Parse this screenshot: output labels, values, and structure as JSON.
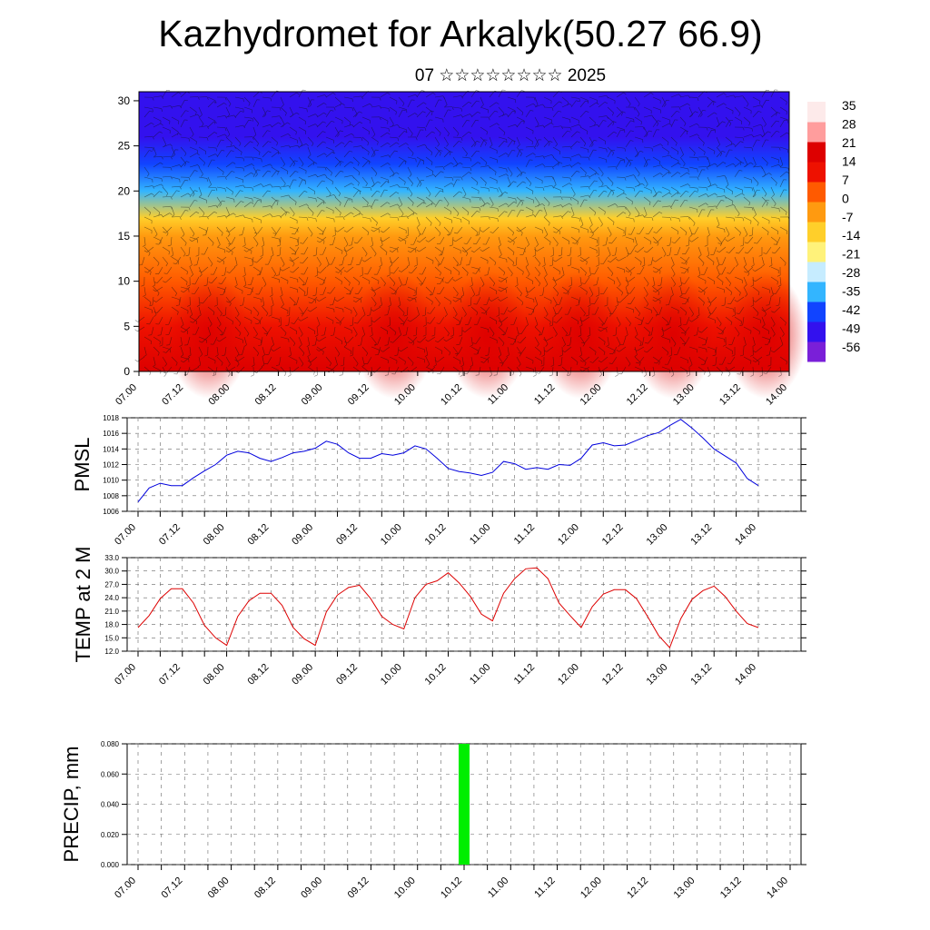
{
  "header": {
    "title": "Kazhydromet for Arkalyk(50.27 66.9)",
    "subtitle": "07 ☆☆☆☆☆☆☆☆ 2025"
  },
  "x_ticks": [
    "07.00",
    "07.12",
    "08.00",
    "08.12",
    "09.00",
    "09.12",
    "10.00",
    "10.12",
    "11.00",
    "11.12",
    "12.00",
    "12.12",
    "13.00",
    "13.12",
    "14.00"
  ],
  "chart_data": [
    {
      "type": "heatmap",
      "title": "",
      "xlabel": "",
      "ylabel": "",
      "x_range": [
        "07.00",
        "14.00"
      ],
      "y_ticks": [
        0,
        5,
        10,
        15,
        20,
        25,
        30
      ],
      "ylim": [
        0,
        31
      ],
      "colorbar": {
        "labels": [
          35,
          28,
          21,
          14,
          7,
          0,
          -7,
          -14,
          -21,
          -28,
          -35,
          -42,
          -49,
          -56
        ],
        "range": [
          -63,
          42
        ],
        "colors": [
          "#7a1fd8",
          "#3311ee",
          "#1144ff",
          "#33b5ff",
          "#c6ecff",
          "#fff27a",
          "#ffcf2a",
          "#ff9a10",
          "#ff5a00",
          "#ee1100",
          "#dd0000",
          "#ff9d9d",
          "#fdeaea"
        ]
      },
      "field_description_values": {
        "layers_temperature": [
          [
            0,
            24
          ],
          [
            5,
            20
          ],
          [
            10,
            11
          ],
          [
            15,
            -2
          ],
          [
            17,
            -12
          ],
          [
            20,
            -36
          ],
          [
            23,
            -48
          ],
          [
            26,
            -54
          ],
          [
            30,
            -58
          ]
        ]
      },
      "overlay": "wind barbs",
      "grid": false
    },
    {
      "type": "line",
      "ylabel": "PMSL",
      "ylim": [
        1006,
        1018
      ],
      "y_ticks": [
        1006,
        1008,
        1010,
        1012,
        1014,
        1016,
        1018
      ],
      "color": "#0000dd",
      "x": [
        "07.00",
        "07.03",
        "07.06",
        "07.09",
        "07.12",
        "07.15",
        "07.18",
        "07.21",
        "08.00",
        "08.03",
        "08.06",
        "08.09",
        "08.12",
        "08.15",
        "08.18",
        "08.21",
        "09.00",
        "09.03",
        "09.06",
        "09.09",
        "09.12",
        "09.15",
        "09.18",
        "09.21",
        "10.00",
        "10.03",
        "10.06",
        "10.09",
        "10.12",
        "10.15",
        "10.18",
        "10.21",
        "11.00",
        "11.03",
        "11.06",
        "11.09",
        "11.12",
        "11.15",
        "11.18",
        "11.21",
        "12.00",
        "12.03",
        "12.06",
        "12.09",
        "12.12",
        "12.15",
        "12.18",
        "12.21",
        "13.00",
        "13.03",
        "13.06",
        "13.09",
        "13.12",
        "13.15",
        "13.18",
        "13.21",
        "14.00"
      ],
      "values": [
        1007.2,
        1009.0,
        1009.6,
        1009.3,
        1009.3,
        1010.3,
        1011.2,
        1012.0,
        1013.2,
        1013.7,
        1013.5,
        1012.8,
        1012.4,
        1012.9,
        1013.5,
        1013.7,
        1014.1,
        1015.0,
        1014.6,
        1013.5,
        1012.8,
        1012.8,
        1013.4,
        1013.2,
        1013.5,
        1014.4,
        1014.0,
        1012.8,
        1011.5,
        1011.1,
        1010.9,
        1010.6,
        1011.0,
        1012.4,
        1012.1,
        1011.4,
        1011.6,
        1011.4,
        1012.0,
        1011.9,
        1012.8,
        1014.5,
        1014.8,
        1014.4,
        1014.5,
        1015.1,
        1015.7,
        1016.1,
        1017.0,
        1017.8,
        1016.7,
        1015.4,
        1014.0,
        1013.1,
        1012.2,
        1010.2,
        1009.3
      ]
    },
    {
      "type": "line",
      "ylabel": "TEMP at 2 M",
      "ylim": [
        12,
        33
      ],
      "y_ticks": [
        12.0,
        15.0,
        18.0,
        21.0,
        24.0,
        27.0,
        30.0,
        33.0
      ],
      "color": "#dd0000",
      "x": [
        "07.00",
        "07.03",
        "07.06",
        "07.09",
        "07.12",
        "07.15",
        "07.18",
        "07.21",
        "08.00",
        "08.03",
        "08.06",
        "08.09",
        "08.12",
        "08.15",
        "08.18",
        "08.21",
        "09.00",
        "09.03",
        "09.06",
        "09.09",
        "09.12",
        "09.15",
        "09.18",
        "09.21",
        "10.00",
        "10.03",
        "10.06",
        "10.09",
        "10.12",
        "10.15",
        "10.18",
        "10.21",
        "11.00",
        "11.03",
        "11.06",
        "11.09",
        "11.12",
        "11.15",
        "11.18",
        "11.21",
        "12.00",
        "12.03",
        "12.06",
        "12.09",
        "12.12",
        "12.15",
        "12.18",
        "12.21",
        "13.00",
        "13.03",
        "13.06",
        "13.09",
        "13.12",
        "13.15",
        "13.18",
        "13.21",
        "14.00"
      ],
      "values": [
        17.3,
        20.0,
        23.8,
        26.0,
        26.0,
        22.8,
        17.8,
        15.0,
        13.3,
        19.8,
        23.3,
        25.0,
        25.0,
        22.3,
        17.3,
        14.8,
        13.3,
        20.8,
        24.6,
        26.3,
        26.8,
        23.8,
        19.8,
        18.0,
        17.0,
        24.0,
        27.0,
        27.8,
        29.6,
        27.3,
        24.3,
        20.3,
        18.8,
        25.0,
        28.3,
        30.5,
        30.7,
        28.3,
        22.8,
        20.0,
        17.3,
        22.0,
        24.8,
        25.8,
        25.8,
        23.8,
        19.8,
        15.5,
        12.8,
        19.3,
        23.6,
        25.6,
        26.6,
        24.3,
        21.0,
        18.2,
        17.3
      ]
    },
    {
      "type": "bar",
      "ylabel": "PRECIP, mm",
      "ylim": [
        0,
        0.08
      ],
      "y_ticks": [
        "0.000",
        "0.020",
        "0.040",
        "0.060",
        "0.080"
      ],
      "color": "#00ee00",
      "bars": [
        {
          "x": "10.12",
          "value": 0.08
        }
      ]
    }
  ]
}
